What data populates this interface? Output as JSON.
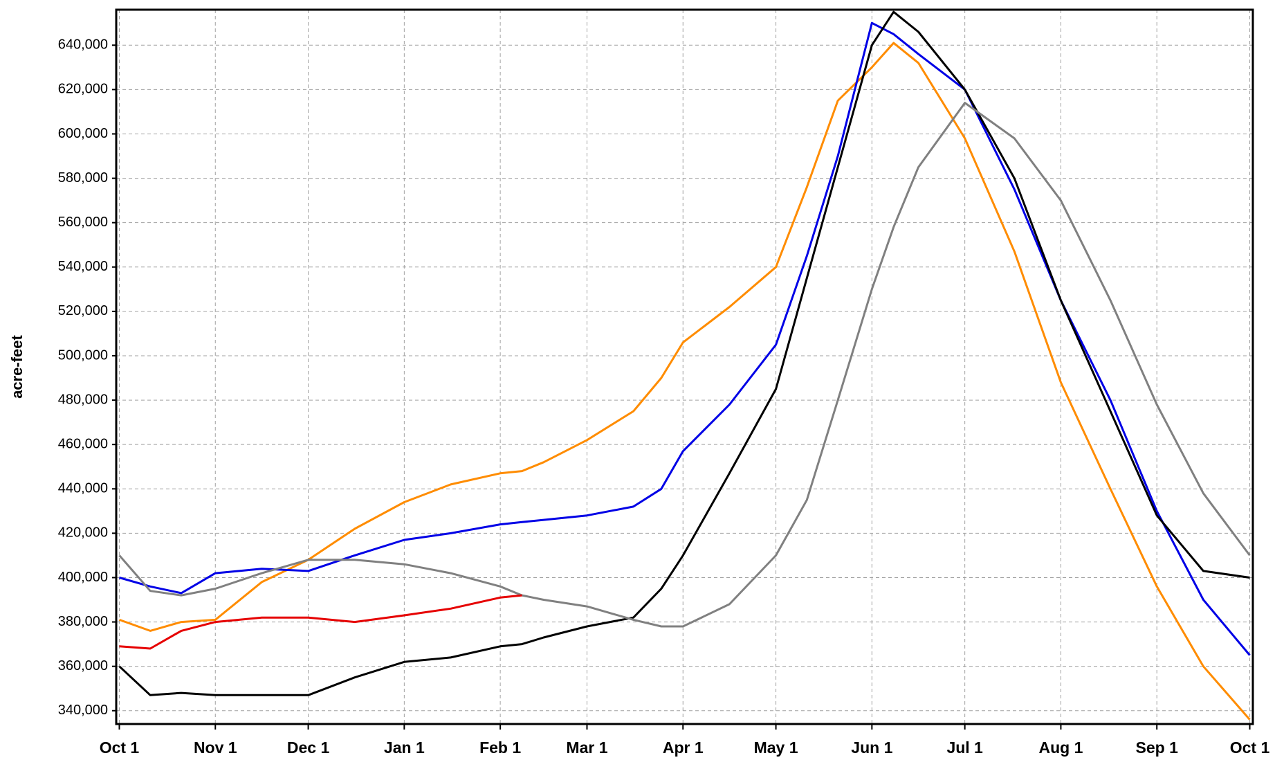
{
  "chart_data": {
    "type": "line",
    "ylabel": "acre-feet",
    "x": [
      0,
      10,
      20,
      31,
      46,
      61,
      76,
      92,
      107,
      123,
      130,
      137,
      151,
      166,
      175,
      182,
      197,
      212,
      222,
      232,
      243,
      250,
      258,
      273,
      289,
      304,
      320,
      335,
      350,
      365
    ],
    "series": [
      {
        "color": "#ff8c00",
        "values": [
          381000,
          376000,
          380000,
          381000,
          398000,
          408000,
          422000,
          434000,
          442000,
          447000,
          448000,
          452000,
          462000,
          475000,
          490000,
          506000,
          522000,
          540000,
          576000,
          615000,
          630000,
          641000,
          632000,
          598000,
          547000,
          488000,
          440000,
          396000,
          360000,
          336000
        ]
      },
      {
        "color": "#0000e6",
        "values": [
          400000,
          396000,
          393000,
          402000,
          404000,
          403000,
          410000,
          417000,
          420000,
          424000,
          425000,
          426000,
          428000,
          432000,
          440000,
          457000,
          478000,
          505000,
          545000,
          590000,
          650000,
          645000,
          636000,
          620000,
          575000,
          525000,
          480000,
          430000,
          390000,
          365000
        ]
      },
      {
        "color": "#000000",
        "values": [
          360000,
          347000,
          348000,
          347000,
          347000,
          347000,
          355000,
          362000,
          364000,
          369000,
          370000,
          373000,
          378000,
          382000,
          395000,
          410000,
          447000,
          485000,
          535000,
          585000,
          640000,
          655000,
          646000,
          620000,
          580000,
          525000,
          475000,
          428000,
          403000,
          400000
        ]
      },
      {
        "color": "#808080",
        "values": [
          410000,
          394000,
          392000,
          395000,
          402000,
          408000,
          408000,
          406000,
          402000,
          396000,
          392000,
          390000,
          387000,
          381000,
          378000,
          378000,
          388000,
          410000,
          435000,
          480000,
          530000,
          558000,
          585000,
          614000,
          598000,
          570000,
          525000,
          478000,
          438000,
          410000
        ]
      },
      {
        "color": "#e60000",
        "values": [
          369000,
          368000,
          376000,
          380000,
          382000,
          382000,
          380000,
          383000,
          386000,
          391000,
          392000,
          null,
          null,
          null,
          null,
          null,
          null,
          null,
          null,
          null,
          null,
          null,
          null,
          null,
          null,
          null,
          null,
          null,
          null,
          null
        ]
      }
    ],
    "xlim": [
      -1,
      366
    ],
    "xticks": [
      {
        "value": 0,
        "label": "Oct 1"
      },
      {
        "value": 31,
        "label": "Nov 1"
      },
      {
        "value": 61,
        "label": "Dec 1"
      },
      {
        "value": 92,
        "label": "Jan 1"
      },
      {
        "value": 123,
        "label": "Feb 1"
      },
      {
        "value": 151,
        "label": "Mar 1"
      },
      {
        "value": 182,
        "label": "Apr 1"
      },
      {
        "value": 212,
        "label": "May 1"
      },
      {
        "value": 243,
        "label": "Jun 1"
      },
      {
        "value": 273,
        "label": "Jul 1"
      },
      {
        "value": 304,
        "label": "Aug 1"
      },
      {
        "value": 335,
        "label": "Sep 1"
      },
      {
        "value": 365,
        "label": "Oct 1"
      }
    ],
    "ylim": [
      334000,
      656000
    ],
    "yticks": [
      {
        "value": 340000,
        "label": "340,000"
      },
      {
        "value": 360000,
        "label": "360,000"
      },
      {
        "value": 380000,
        "label": "380,000"
      },
      {
        "value": 400000,
        "label": "400,000"
      },
      {
        "value": 420000,
        "label": "420,000"
      },
      {
        "value": 440000,
        "label": "440,000"
      },
      {
        "value": 460000,
        "label": "460,000"
      },
      {
        "value": 480000,
        "label": "480,000"
      },
      {
        "value": 500000,
        "label": "500,000"
      },
      {
        "value": 520000,
        "label": "520,000"
      },
      {
        "value": 540000,
        "label": "540,000"
      },
      {
        "value": 560000,
        "label": "560,000"
      },
      {
        "value": 580000,
        "label": "580,000"
      },
      {
        "value": 600000,
        "label": "600,000"
      },
      {
        "value": 620000,
        "label": "620,000"
      },
      {
        "value": 640000,
        "label": "640,000"
      }
    ],
    "grid": true
  }
}
